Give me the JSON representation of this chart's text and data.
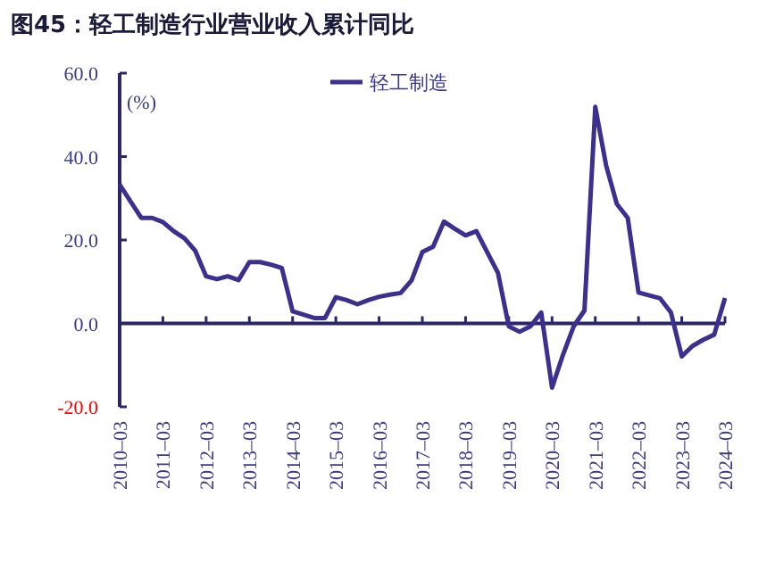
{
  "chart_data": {
    "type": "line",
    "title": "图45：轻工制造行业营业收入累计同比",
    "ylabel": "(%)",
    "x": [
      "2010-03",
      "2010-06",
      "2010-09",
      "2010-12",
      "2011-03",
      "2011-06",
      "2011-09",
      "2011-12",
      "2012-03",
      "2012-06",
      "2012-09",
      "2012-12",
      "2013-03",
      "2013-06",
      "2013-09",
      "2013-12",
      "2014-03",
      "2014-06",
      "2014-09",
      "2014-12",
      "2015-03",
      "2015-06",
      "2015-09",
      "2015-12",
      "2016-03",
      "2016-06",
      "2016-09",
      "2016-12",
      "2017-03",
      "2017-06",
      "2017-09",
      "2017-12",
      "2018-03",
      "2018-06",
      "2018-09",
      "2018-12",
      "2019-03",
      "2019-06",
      "2019-09",
      "2019-12",
      "2020-03",
      "2020-06",
      "2020-09",
      "2020-12",
      "2021-03",
      "2021-06",
      "2021-09",
      "2021-12",
      "2022-03",
      "2022-06",
      "2022-09",
      "2022-12",
      "2023-03",
      "2023-06",
      "2023-09",
      "2023-12",
      "2024-03"
    ],
    "series": [
      {
        "name": "轻工制造",
        "color": "#3b2f8f",
        "values": [
          33.3,
          29.3,
          25.3,
          25.3,
          24.3,
          22.1,
          20.4,
          17.4,
          11.3,
          10.6,
          11.3,
          10.4,
          14.7,
          14.7,
          14.1,
          13.3,
          2.9,
          2.1,
          1.3,
          1.3,
          6.3,
          5.6,
          4.6,
          5.6,
          6.4,
          6.9,
          7.3,
          10.3,
          17.1,
          18.4,
          24.4,
          22.7,
          21.1,
          22.1,
          17.1,
          12.1,
          -0.7,
          -2.0,
          -0.7,
          2.6,
          -15.4,
          -7.6,
          -0.7,
          3.1,
          51.9,
          37.9,
          28.6,
          25.3,
          7.4,
          6.7,
          6.0,
          2.6,
          -7.9,
          -5.4,
          -3.9,
          -2.7,
          6.1
        ]
      }
    ],
    "xlim": [
      "2010-03",
      "2024-03"
    ],
    "xticks": [
      {
        "value": "2010-03",
        "label": "2010–03"
      },
      {
        "value": "2011-03",
        "label": "2011–03"
      },
      {
        "value": "2012-03",
        "label": "2012–03"
      },
      {
        "value": "2013-03",
        "label": "2013–03"
      },
      {
        "value": "2014-03",
        "label": "2014–03"
      },
      {
        "value": "2015-03",
        "label": "2015–03"
      },
      {
        "value": "2016-03",
        "label": "2016–03"
      },
      {
        "value": "2017-03",
        "label": "2017–03"
      },
      {
        "value": "2018-03",
        "label": "2018–03"
      },
      {
        "value": "2019-03",
        "label": "2019–03"
      },
      {
        "value": "2020-03",
        "label": "2020–03"
      },
      {
        "value": "2021-03",
        "label": "2021–03"
      },
      {
        "value": "2022-03",
        "label": "2022–03"
      },
      {
        "value": "2023-03",
        "label": "2023–03"
      },
      {
        "value": "2024-03",
        "label": "2024–03"
      }
    ],
    "ylim": [
      -20,
      60
    ],
    "yticks": [
      {
        "value": -20,
        "label": "-20.0"
      },
      {
        "value": 0,
        "label": "0.0"
      },
      {
        "value": 20,
        "label": "20.0"
      },
      {
        "value": 40,
        "label": "40.0"
      },
      {
        "value": 60,
        "label": "60.0"
      }
    ],
    "ref_lines": [
      {
        "axis": "y",
        "value": 0,
        "color": "#2a2668",
        "line_style": "solid"
      }
    ],
    "legend": "top",
    "grid": false,
    "marker": "none",
    "line_style": "solid"
  }
}
